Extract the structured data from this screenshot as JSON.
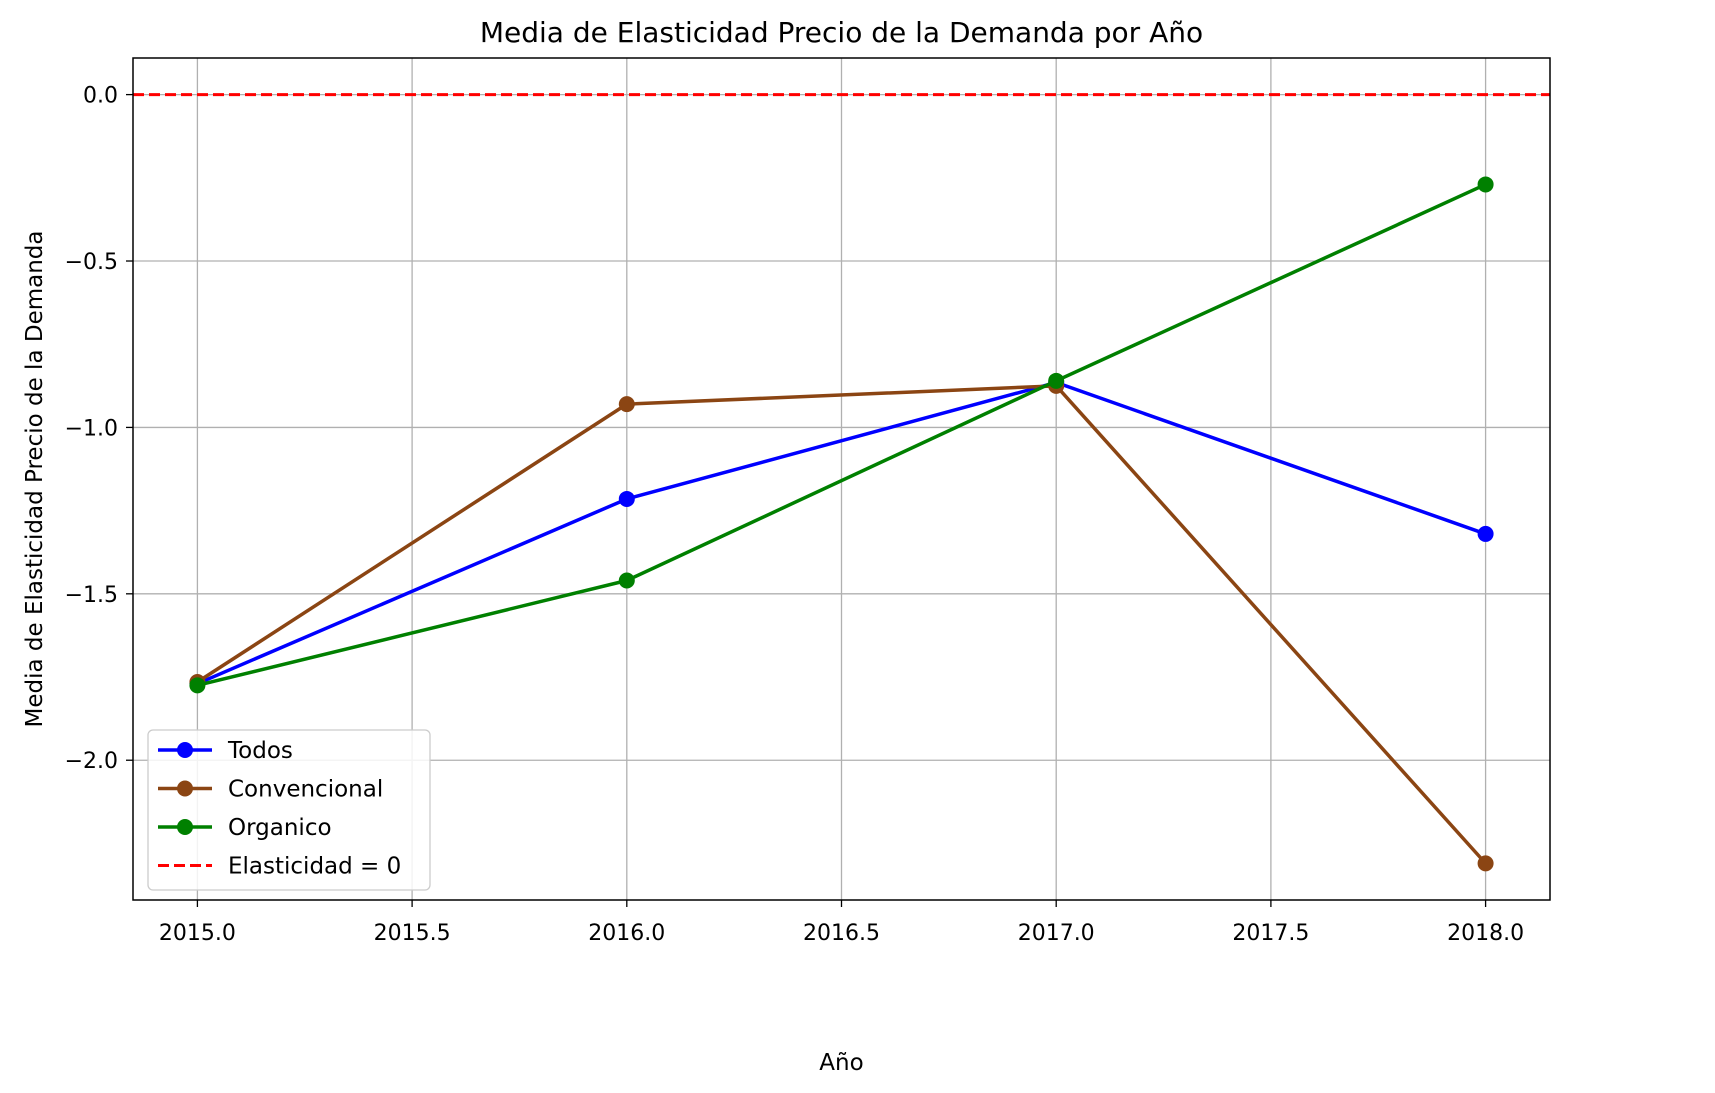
{
  "chart_data": {
    "type": "line",
    "title": "Media de Elasticidad Precio de la Demanda por Año",
    "xlabel": "Año",
    "ylabel": "Media de Elasticidad Precio de la Demanda",
    "xlim": [
      2014.85,
      2018.15
    ],
    "ylim": [
      -2.42,
      0.11
    ],
    "xticks": [
      2015.0,
      2015.5,
      2016.0,
      2016.5,
      2017.0,
      2017.5,
      2018.0
    ],
    "xtick_labels": [
      "2015.0",
      "2015.5",
      "2016.0",
      "2016.5",
      "2017.0",
      "2017.5",
      "2018.0"
    ],
    "yticks": [
      0.0,
      -0.5,
      -1.0,
      -1.5,
      -2.0
    ],
    "ytick_labels": [
      "0.0",
      "−0.5",
      "−1.0",
      "−1.5",
      "−2.0"
    ],
    "grid": true,
    "legend_position": "lower-left",
    "x": [
      2015,
      2016,
      2017,
      2018
    ],
    "series": [
      {
        "name": "Todos",
        "color": "#0000ff",
        "marker": "circle",
        "values": [
          -1.77,
          -1.215,
          -0.865,
          -1.32
        ]
      },
      {
        "name": "Convencional",
        "color": "#8b4513",
        "marker": "circle",
        "values": [
          -1.765,
          -0.93,
          -0.875,
          -2.31
        ]
      },
      {
        "name": "Organico",
        "color": "#008000",
        "marker": "circle",
        "values": [
          -1.775,
          -1.46,
          -0.86,
          -0.27
        ]
      }
    ],
    "reference_line": {
      "name": "Elasticidad = 0",
      "y": 0.0,
      "color": "#ff0000",
      "style": "dashed"
    }
  }
}
